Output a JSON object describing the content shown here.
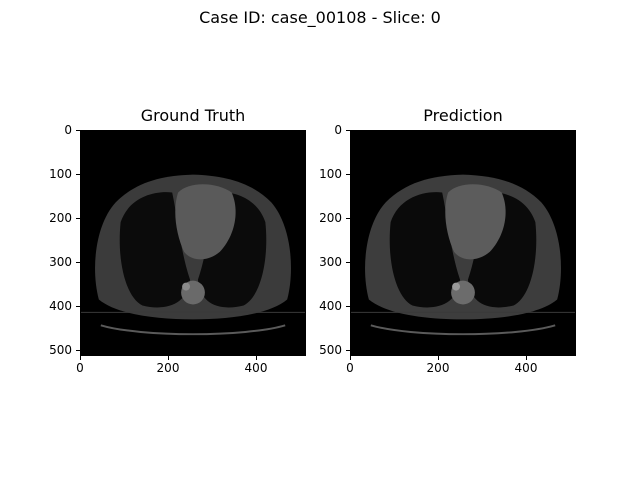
{
  "figure": {
    "suptitle": "Case ID: case_00108 - Slice: 0"
  },
  "panels": [
    {
      "title": "Ground Truth",
      "ytick_labels": [
        "0",
        "100",
        "200",
        "300",
        "400",
        "500"
      ],
      "xtick_labels": [
        "0",
        "200",
        "400"
      ]
    },
    {
      "title": "Prediction",
      "ytick_labels": [
        "0",
        "100",
        "200",
        "300",
        "400",
        "500"
      ],
      "xtick_labels": [
        "0",
        "200",
        "400"
      ]
    }
  ],
  "colors": {
    "background": "#000000",
    "body_soft_tissue": "#3a3a3a",
    "heart": "#5a5a5a",
    "lung": "#0a0a0a",
    "bone": "#8a8a8a"
  }
}
